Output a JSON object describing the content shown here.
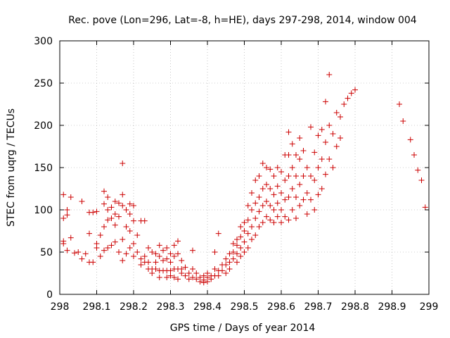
{
  "chart_data": {
    "type": "scatter",
    "title": "Rec. pove (Lon=296, Lat=-8, h=HE), days 297-298, 2014, window 004",
    "xlabel": "GPS time / Days of year 2014",
    "ylabel": "STEC from uqrg / TECUs",
    "xlim": [
      298,
      299
    ],
    "ylim": [
      0,
      300
    ],
    "x_ticks": [
      "298",
      "298.1",
      "298.2",
      "298.3",
      "298.4",
      "298.5",
      "298.6",
      "298.7",
      "298.8",
      "298.9",
      "299"
    ],
    "y_ticks": [
      "0",
      "50",
      "100",
      "150",
      "200",
      "250",
      "300"
    ],
    "grid": true,
    "marker": "plus",
    "series": [
      {
        "color": "#cc0000",
        "points": [
          [
            298.01,
            118
          ],
          [
            298.01,
            90
          ],
          [
            298.01,
            63
          ],
          [
            298.01,
            60
          ],
          [
            298.02,
            100
          ],
          [
            298.02,
            94
          ],
          [
            298.02,
            52
          ],
          [
            298.03,
            115
          ],
          [
            298.03,
            67
          ],
          [
            298.04,
            49
          ],
          [
            298.05,
            50
          ],
          [
            298.06,
            110
          ],
          [
            298.06,
            42
          ],
          [
            298.07,
            48
          ],
          [
            298.08,
            97
          ],
          [
            298.08,
            72
          ],
          [
            298.08,
            38
          ],
          [
            298.09,
            97
          ],
          [
            298.09,
            38
          ],
          [
            298.1,
            98
          ],
          [
            298.1,
            60
          ],
          [
            298.1,
            55
          ],
          [
            298.11,
            70
          ],
          [
            298.11,
            45
          ],
          [
            298.12,
            122
          ],
          [
            298.12,
            107
          ],
          [
            298.12,
            80
          ],
          [
            298.12,
            52
          ],
          [
            298.13,
            115
          ],
          [
            298.13,
            100
          ],
          [
            298.13,
            88
          ],
          [
            298.13,
            55
          ],
          [
            298.14,
            103
          ],
          [
            298.14,
            90
          ],
          [
            298.14,
            58
          ],
          [
            298.15,
            110
          ],
          [
            298.15,
            95
          ],
          [
            298.15,
            82
          ],
          [
            298.15,
            62
          ],
          [
            298.16,
            108
          ],
          [
            298.16,
            92
          ],
          [
            298.16,
            50
          ],
          [
            298.17,
            155
          ],
          [
            298.17,
            118
          ],
          [
            298.17,
            105
          ],
          [
            298.17,
            65
          ],
          [
            298.17,
            40
          ],
          [
            298.18,
            100
          ],
          [
            298.18,
            80
          ],
          [
            298.18,
            48
          ],
          [
            298.19,
            107
          ],
          [
            298.19,
            95
          ],
          [
            298.19,
            75
          ],
          [
            298.19,
            55
          ],
          [
            298.2,
            105
          ],
          [
            298.2,
            87
          ],
          [
            298.2,
            60
          ],
          [
            298.2,
            45
          ],
          [
            298.21,
            70
          ],
          [
            298.21,
            50
          ],
          [
            298.22,
            87
          ],
          [
            298.22,
            42
          ],
          [
            298.22,
            35
          ],
          [
            298.23,
            87
          ],
          [
            298.23,
            45
          ],
          [
            298.23,
            38
          ],
          [
            298.24,
            55
          ],
          [
            298.24,
            38
          ],
          [
            298.24,
            30
          ],
          [
            298.25,
            50
          ],
          [
            298.25,
            30
          ],
          [
            298.25,
            25
          ],
          [
            298.26,
            48
          ],
          [
            298.26,
            38
          ],
          [
            298.26,
            30
          ],
          [
            298.27,
            58
          ],
          [
            298.27,
            45
          ],
          [
            298.27,
            28
          ],
          [
            298.27,
            20
          ],
          [
            298.28,
            52
          ],
          [
            298.28,
            40
          ],
          [
            298.28,
            28
          ],
          [
            298.29,
            55
          ],
          [
            298.29,
            42
          ],
          [
            298.29,
            28
          ],
          [
            298.29,
            20
          ],
          [
            298.3,
            48
          ],
          [
            298.3,
            38
          ],
          [
            298.3,
            28
          ],
          [
            298.3,
            22
          ],
          [
            298.31,
            58
          ],
          [
            298.31,
            45
          ],
          [
            298.31,
            30
          ],
          [
            298.31,
            20
          ],
          [
            298.32,
            63
          ],
          [
            298.32,
            48
          ],
          [
            298.32,
            30
          ],
          [
            298.32,
            18
          ],
          [
            298.33,
            40
          ],
          [
            298.33,
            30
          ],
          [
            298.33,
            25
          ],
          [
            298.34,
            32
          ],
          [
            298.34,
            22
          ],
          [
            298.35,
            25
          ],
          [
            298.35,
            18
          ],
          [
            298.36,
            52
          ],
          [
            298.36,
            30
          ],
          [
            298.36,
            20
          ],
          [
            298.37,
            25
          ],
          [
            298.37,
            18
          ],
          [
            298.38,
            20
          ],
          [
            298.38,
            15
          ],
          [
            298.39,
            22
          ],
          [
            298.39,
            17
          ],
          [
            298.39,
            14
          ],
          [
            298.4,
            25
          ],
          [
            298.4,
            20
          ],
          [
            298.4,
            15
          ],
          [
            298.41,
            22
          ],
          [
            298.41,
            18
          ],
          [
            298.42,
            50
          ],
          [
            298.42,
            30
          ],
          [
            298.42,
            22
          ],
          [
            298.43,
            72
          ],
          [
            298.43,
            28
          ],
          [
            298.43,
            22
          ],
          [
            298.44,
            35
          ],
          [
            298.44,
            28
          ],
          [
            298.45,
            42
          ],
          [
            298.45,
            35
          ],
          [
            298.45,
            25
          ],
          [
            298.46,
            48
          ],
          [
            298.46,
            38
          ],
          [
            298.46,
            30
          ],
          [
            298.47,
            60
          ],
          [
            298.47,
            50
          ],
          [
            298.47,
            42
          ],
          [
            298.48,
            65
          ],
          [
            298.48,
            58
          ],
          [
            298.48,
            48
          ],
          [
            298.48,
            38
          ],
          [
            298.49,
            80
          ],
          [
            298.49,
            68
          ],
          [
            298.49,
            55
          ],
          [
            298.49,
            45
          ],
          [
            298.5,
            85
          ],
          [
            298.5,
            75
          ],
          [
            298.5,
            62
          ],
          [
            298.5,
            50
          ],
          [
            298.51,
            105
          ],
          [
            298.51,
            88
          ],
          [
            298.51,
            72
          ],
          [
            298.51,
            55
          ],
          [
            298.52,
            120
          ],
          [
            298.52,
            100
          ],
          [
            298.52,
            80
          ],
          [
            298.52,
            65
          ],
          [
            298.53,
            135
          ],
          [
            298.53,
            108
          ],
          [
            298.53,
            90
          ],
          [
            298.53,
            70
          ],
          [
            298.54,
            140
          ],
          [
            298.54,
            115
          ],
          [
            298.54,
            98
          ],
          [
            298.54,
            80
          ],
          [
            298.55,
            155
          ],
          [
            298.55,
            125
          ],
          [
            298.55,
            105
          ],
          [
            298.55,
            85
          ],
          [
            298.56,
            150
          ],
          [
            298.56,
            130
          ],
          [
            298.56,
            110
          ],
          [
            298.56,
            92
          ],
          [
            298.57,
            148
          ],
          [
            298.57,
            125
          ],
          [
            298.57,
            105
          ],
          [
            298.57,
            88
          ],
          [
            298.58,
            140
          ],
          [
            298.58,
            118
          ],
          [
            298.58,
            100
          ],
          [
            298.58,
            85
          ],
          [
            298.59,
            150
          ],
          [
            298.59,
            128
          ],
          [
            298.59,
            108
          ],
          [
            298.59,
            92
          ],
          [
            298.6,
            145
          ],
          [
            298.6,
            120
          ],
          [
            298.6,
            100
          ],
          [
            298.6,
            85
          ],
          [
            298.61,
            165
          ],
          [
            298.61,
            135
          ],
          [
            298.61,
            112
          ],
          [
            298.61,
            92
          ],
          [
            298.62,
            192
          ],
          [
            298.62,
            165
          ],
          [
            298.62,
            140
          ],
          [
            298.62,
            115
          ],
          [
            298.62,
            88
          ],
          [
            298.63,
            178
          ],
          [
            298.63,
            150
          ],
          [
            298.63,
            125
          ],
          [
            298.63,
            100
          ],
          [
            298.64,
            165
          ],
          [
            298.64,
            140
          ],
          [
            298.64,
            115
          ],
          [
            298.64,
            90
          ],
          [
            298.65,
            185
          ],
          [
            298.65,
            160
          ],
          [
            298.65,
            130
          ],
          [
            298.65,
            105
          ],
          [
            298.66,
            170
          ],
          [
            298.66,
            140
          ],
          [
            298.66,
            112
          ],
          [
            298.67,
            150
          ],
          [
            298.67,
            120
          ],
          [
            298.67,
            95
          ],
          [
            298.68,
            198
          ],
          [
            298.68,
            140
          ],
          [
            298.68,
            112
          ],
          [
            298.69,
            168
          ],
          [
            298.69,
            135
          ],
          [
            298.69,
            100
          ],
          [
            298.7,
            188
          ],
          [
            298.7,
            150
          ],
          [
            298.7,
            118
          ],
          [
            298.71,
            195
          ],
          [
            298.71,
            160
          ],
          [
            298.71,
            125
          ],
          [
            298.72,
            228
          ],
          [
            298.72,
            180
          ],
          [
            298.72,
            142
          ],
          [
            298.73,
            260
          ],
          [
            298.73,
            200
          ],
          [
            298.73,
            160
          ],
          [
            298.74,
            190
          ],
          [
            298.74,
            150
          ],
          [
            298.75,
            215
          ],
          [
            298.75,
            175
          ],
          [
            298.76,
            210
          ],
          [
            298.76,
            185
          ],
          [
            298.77,
            225
          ],
          [
            298.78,
            232
          ],
          [
            298.79,
            238
          ],
          [
            298.8,
            242
          ],
          [
            298.92,
            225
          ],
          [
            298.93,
            205
          ],
          [
            298.95,
            183
          ],
          [
            298.96,
            165
          ],
          [
            298.97,
            147
          ],
          [
            298.98,
            135
          ],
          [
            298.99,
            103
          ]
        ]
      }
    ]
  }
}
